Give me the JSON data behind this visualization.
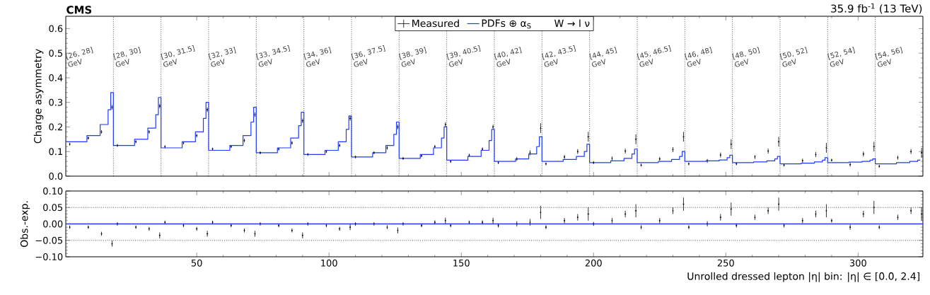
{
  "chart_data": [
    {
      "type": "line",
      "title": "CMS",
      "subtitle": "35.9 fb$^{-1}$ (13 TeV)",
      "ylabel": "Charge asymmetry",
      "xlim": [
        0.5,
        324.5
      ],
      "ylim": [
        0,
        0.65
      ],
      "xticks": [
        50,
        100,
        150,
        200,
        250,
        300
      ],
      "yticks": [
        {
          "value": 0,
          "label": "0.0"
        },
        {
          "value": 0.1,
          "label": "0.1"
        },
        {
          "value": 0.2,
          "label": "0.2"
        },
        {
          "value": 0.3,
          "label": "0.3"
        },
        {
          "value": 0.4,
          "label": "0.4"
        },
        {
          "value": 0.5,
          "label": "0.5"
        },
        {
          "value": 0.6,
          "label": "0.6"
        }
      ],
      "tick_labels": "y",
      "legend": "top",
      "legend_title": "W → l ν",
      "annotations": [
        "[26, 28] GeV",
        "[28, 30] GeV",
        "[30, 31.5] GeV",
        "[32, 33] GeV",
        "[33, 34.5] GeV",
        "[34, 36] GeV",
        "[36, 37.5] GeV",
        "[38, 39] GeV",
        "[39, 40.5] GeV",
        "[40, 42] GeV",
        "[42, 43.5] GeV",
        "[44, 45] GeV",
        "[45, 46.5] GeV",
        "[46, 48] GeV",
        "[48, 50] GeV",
        "[50, 52] GeV",
        "[52, 54] GeV",
        "[54, 56] GeV"
      ],
      "series": [
        {
          "name": "Measured",
          "type": "scatter",
          "color": "#000000",
          "x": [
            2,
            9,
            14,
            18,
            20,
            27,
            32,
            36,
            38,
            45,
            50,
            54,
            56,
            63,
            68,
            72,
            74,
            81,
            86,
            90,
            92,
            99,
            104,
            108,
            110,
            117,
            122,
            126,
            128,
            135,
            140,
            144,
            146,
            153,
            158,
            162,
            164,
            171,
            176,
            180,
            182,
            189,
            194,
            198,
            200,
            207,
            212,
            216,
            218,
            225,
            230,
            234,
            236,
            243,
            248,
            252,
            254,
            261,
            266,
            270,
            272,
            279,
            284,
            288,
            290,
            297,
            302,
            306,
            308,
            315,
            320,
            324
          ],
          "values": [
            0.13,
            0.155,
            0.18,
            0.28,
            0.125,
            0.14,
            0.18,
            0.285,
            0.12,
            0.135,
            0.165,
            0.27,
            0.11,
            0.12,
            0.145,
            0.25,
            0.095,
            0.11,
            0.135,
            0.225,
            0.088,
            0.1,
            0.125,
            0.235,
            0.078,
            0.095,
            0.115,
            0.2,
            0.072,
            0.083,
            0.12,
            0.21,
            0.06,
            0.085,
            0.11,
            0.2,
            0.055,
            0.07,
            0.095,
            0.195,
            0.05,
            0.078,
            0.1,
            0.16,
            0.055,
            0.072,
            0.102,
            0.15,
            0.045,
            0.07,
            0.108,
            0.16,
            0.05,
            0.062,
            0.086,
            0.13,
            0.05,
            0.078,
            0.102,
            0.14,
            0.045,
            0.063,
            0.088,
            0.115,
            0.065,
            0.047,
            0.09,
            0.12,
            0.04,
            0.075,
            0.1,
            0.095
          ],
          "errors": [
            0.006,
            0.006,
            0.007,
            0.009,
            0.006,
            0.006,
            0.007,
            0.009,
            0.006,
            0.006,
            0.007,
            0.009,
            0.006,
            0.006,
            0.007,
            0.009,
            0.006,
            0.006,
            0.007,
            0.009,
            0.006,
            0.006,
            0.007,
            0.009,
            0.006,
            0.006,
            0.007,
            0.009,
            0.006,
            0.006,
            0.007,
            0.009,
            0.006,
            0.006,
            0.007,
            0.009,
            0.006,
            0.008,
            0.01,
            0.02,
            0.006,
            0.008,
            0.01,
            0.02,
            0.006,
            0.008,
            0.01,
            0.02,
            0.006,
            0.008,
            0.01,
            0.02,
            0.006,
            0.008,
            0.01,
            0.02,
            0.006,
            0.008,
            0.01,
            0.02,
            0.006,
            0.008,
            0.01,
            0.02,
            0.006,
            0.008,
            0.01,
            0.02,
            0.006,
            0.008,
            0.01,
            0.02
          ]
        },
        {
          "name": "PDFs ⊕ α$_{S}$",
          "type": "step",
          "color": "#1f3bff",
          "x": [
            0.5,
            8.5,
            13.5,
            16.5,
            17.5,
            18.5,
            26.5,
            31.5,
            34.5,
            35.5,
            36.5,
            44.5,
            49.5,
            52.5,
            53.5,
            54.5,
            62.5,
            67.5,
            70.5,
            71.5,
            72.5,
            80.5,
            85.5,
            88.5,
            89.5,
            90.5,
            98.5,
            103.5,
            106.5,
            107.5,
            108.5,
            116.5,
            121.5,
            124.5,
            125.5,
            126.5,
            134.5,
            139.5,
            142.5,
            143.5,
            144.5,
            152.5,
            157.5,
            160.5,
            161.5,
            162.5,
            170.5,
            175.5,
            178.5,
            179.5,
            180.5,
            188.5,
            193.5,
            196.5,
            197.5,
            198.5,
            206.5,
            211.5,
            214.5,
            215.5,
            216.5,
            224.5,
            229.5,
            232.5,
            233.5,
            234.5,
            242.5,
            247.5,
            250.5,
            251.5,
            252.5,
            260.5,
            265.5,
            268.5,
            269.5,
            270.5,
            278.5,
            283.5,
            286.5,
            287.5,
            288.5,
            296.5,
            301.5,
            304.5,
            305.5,
            306.5,
            314.5,
            319.5,
            322.5,
            323.5
          ],
          "values": [
            0.14,
            0.165,
            0.21,
            0.27,
            0.34,
            0.125,
            0.15,
            0.195,
            0.25,
            0.32,
            0.115,
            0.14,
            0.18,
            0.235,
            0.3,
            0.105,
            0.125,
            0.165,
            0.22,
            0.28,
            0.095,
            0.115,
            0.155,
            0.205,
            0.26,
            0.088,
            0.105,
            0.14,
            0.19,
            0.245,
            0.078,
            0.095,
            0.125,
            0.17,
            0.22,
            0.072,
            0.088,
            0.115,
            0.155,
            0.2,
            0.065,
            0.08,
            0.105,
            0.145,
            0.19,
            0.06,
            0.07,
            0.09,
            0.12,
            0.16,
            0.06,
            0.068,
            0.08,
            0.1,
            0.13,
            0.055,
            0.062,
            0.072,
            0.09,
            0.11,
            0.055,
            0.06,
            0.068,
            0.08,
            0.1,
            0.06,
            0.062,
            0.066,
            0.075,
            0.085,
            0.055,
            0.058,
            0.062,
            0.07,
            0.08,
            0.05,
            0.053,
            0.058,
            0.065,
            0.075,
            0.055,
            0.057,
            0.06,
            0.065,
            0.07,
            0.05,
            0.055,
            0.06,
            0.065,
            0.065
          ]
        }
      ],
      "ref_lines": [
        {
          "axis": "x",
          "value": 18.5,
          "line_style": "dotted"
        },
        {
          "axis": "x",
          "value": 36.5,
          "line_style": "dotted"
        },
        {
          "axis": "x",
          "value": 54.5,
          "line_style": "dotted"
        },
        {
          "axis": "x",
          "value": 72.5,
          "line_style": "dotted"
        },
        {
          "axis": "x",
          "value": 90.5,
          "line_style": "dotted"
        },
        {
          "axis": "x",
          "value": 108.5,
          "line_style": "dotted"
        },
        {
          "axis": "x",
          "value": 126.5,
          "line_style": "dotted"
        },
        {
          "axis": "x",
          "value": 144.5,
          "line_style": "dotted"
        },
        {
          "axis": "x",
          "value": 162.5,
          "line_style": "dotted"
        },
        {
          "axis": "x",
          "value": 180.5,
          "line_style": "dotted"
        },
        {
          "axis": "x",
          "value": 198.5,
          "line_style": "dotted"
        },
        {
          "axis": "x",
          "value": 216.5,
          "line_style": "dotted"
        },
        {
          "axis": "x",
          "value": 234.5,
          "line_style": "dotted"
        },
        {
          "axis": "x",
          "value": 252.5,
          "line_style": "dotted"
        },
        {
          "axis": "x",
          "value": 270.5,
          "line_style": "dotted"
        },
        {
          "axis": "x",
          "value": 288.5,
          "line_style": "dotted"
        },
        {
          "axis": "x",
          "value": 306.5,
          "line_style": "dotted"
        }
      ]
    },
    {
      "type": "scatter",
      "xlabel": "Unrolled dressed lepton |η| bin: |η| ∈ [0.0, 2.4]",
      "ylabel": "Obs.-exp.",
      "xlim": [
        0.5,
        324.5
      ],
      "ylim": [
        -0.1,
        0.1
      ],
      "xticks": [
        50,
        100,
        150,
        200,
        250,
        300
      ],
      "yticks": [
        {
          "value": -0.1,
          "label": "−0.10"
        },
        {
          "value": -0.05,
          "label": "−0.05"
        },
        {
          "value": 0,
          "label": "0.00"
        },
        {
          "value": 0.05,
          "label": "0.05"
        },
        {
          "value": 0.1,
          "label": "0.10"
        }
      ],
      "series": [
        {
          "color": "#000000",
          "x": [
            2,
            9,
            14,
            18,
            20,
            27,
            32,
            36,
            38,
            45,
            50,
            54,
            56,
            63,
            68,
            72,
            74,
            81,
            86,
            90,
            92,
            99,
            104,
            108,
            110,
            117,
            122,
            126,
            128,
            135,
            140,
            144,
            146,
            153,
            158,
            162,
            164,
            171,
            176,
            180,
            182,
            189,
            194,
            198,
            200,
            207,
            212,
            216,
            218,
            225,
            230,
            234,
            236,
            243,
            248,
            252,
            254,
            261,
            266,
            270,
            272,
            279,
            284,
            288,
            290,
            297,
            302,
            306,
            308,
            315,
            320,
            324
          ],
          "values": [
            -0.01,
            -0.01,
            -0.03,
            -0.06,
            0,
            -0.01,
            -0.015,
            -0.035,
            0.005,
            -0.005,
            -0.015,
            -0.03,
            0.005,
            -0.005,
            -0.02,
            -0.03,
            0,
            -0.005,
            -0.02,
            -0.035,
            0,
            -0.005,
            -0.015,
            -0.01,
            0,
            0,
            -0.01,
            -0.02,
            0,
            -0.005,
            0.005,
            0.01,
            -0.005,
            0.005,
            0.005,
            0.01,
            -0.005,
            0,
            0.005,
            0.035,
            -0.01,
            0.01,
            0.02,
            0.03,
            0,
            0.01,
            0.03,
            0.04,
            -0.01,
            0.01,
            0.04,
            0.06,
            -0.01,
            0,
            0.02,
            0.045,
            -0.005,
            0.02,
            0.04,
            0.06,
            -0.005,
            0.01,
            0.03,
            0.04,
            0.01,
            -0.01,
            0.03,
            0.05,
            -0.01,
            0.02,
            0.04,
            0.03
          ],
          "errors": [
            0.005,
            0.005,
            0.006,
            0.009,
            0.005,
            0.005,
            0.006,
            0.009,
            0.005,
            0.005,
            0.006,
            0.009,
            0.005,
            0.005,
            0.006,
            0.009,
            0.005,
            0.005,
            0.006,
            0.009,
            0.005,
            0.005,
            0.006,
            0.009,
            0.005,
            0.005,
            0.006,
            0.009,
            0.005,
            0.005,
            0.006,
            0.009,
            0.005,
            0.005,
            0.006,
            0.009,
            0.006,
            0.008,
            0.01,
            0.02,
            0.006,
            0.008,
            0.01,
            0.02,
            0.006,
            0.008,
            0.01,
            0.02,
            0.006,
            0.008,
            0.01,
            0.02,
            0.006,
            0.008,
            0.01,
            0.02,
            0.006,
            0.008,
            0.01,
            0.02,
            0.006,
            0.008,
            0.01,
            0.02,
            0.006,
            0.008,
            0.01,
            0.02,
            0.006,
            0.008,
            0.01,
            0.02
          ]
        }
      ],
      "ref_lines": [
        {
          "axis": "y",
          "value": 0,
          "color": "#1f3bff",
          "line_style": "solid"
        },
        {
          "axis": "y",
          "value": 0.05,
          "line_style": "dotted"
        },
        {
          "axis": "y",
          "value": -0.05,
          "line_style": "dotted"
        }
      ]
    }
  ]
}
